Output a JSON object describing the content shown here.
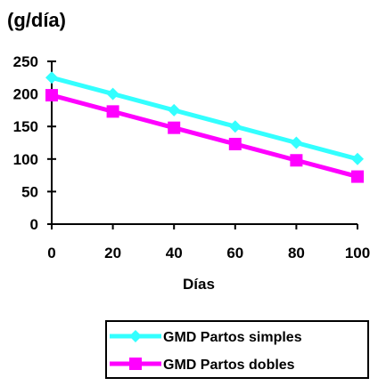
{
  "chart_data": {
    "type": "line",
    "title": "",
    "ylabel": "(g/día)",
    "xlabel": "Días",
    "x": [
      0,
      20,
      40,
      60,
      80,
      100
    ],
    "xlim": [
      0,
      100
    ],
    "ylim": [
      0,
      250
    ],
    "xticks": [
      "0",
      "20",
      "40",
      "60",
      "80",
      "100"
    ],
    "yticks": [
      "0",
      "50",
      "100",
      "150",
      "200",
      "250"
    ],
    "grid": false,
    "legend_position": "bottom-right",
    "series": [
      {
        "name": "GMD Partos simples",
        "values": [
          225,
          200,
          175,
          150,
          125,
          100
        ],
        "color": "#33FFFF",
        "marker": "diamond"
      },
      {
        "name": "GMD Partos dobles",
        "values": [
          198,
          173,
          148,
          123,
          98,
          73
        ],
        "color": "#FF00FF",
        "marker": "square"
      }
    ]
  }
}
